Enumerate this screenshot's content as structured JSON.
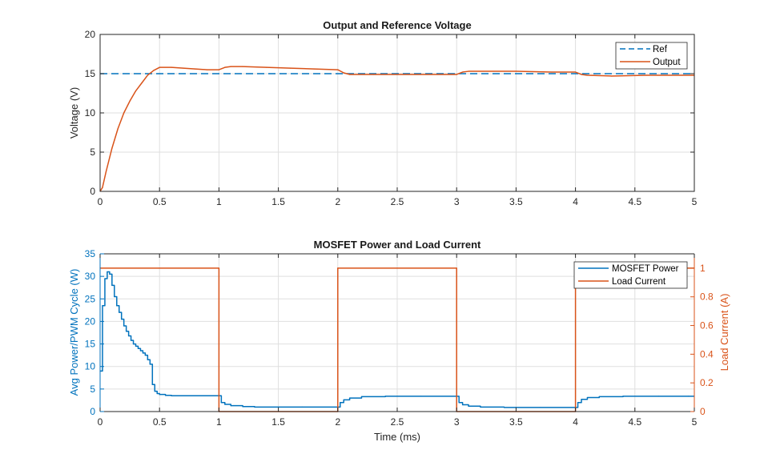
{
  "chart_data": [
    {
      "type": "line",
      "title": "Output and Reference Voltage",
      "xlabel": "",
      "ylabel": "Voltage (V)",
      "xlim": [
        0,
        5
      ],
      "ylim": [
        0,
        20
      ],
      "xticks": [
        0,
        0.5,
        1,
        1.5,
        2,
        2.5,
        3,
        3.5,
        4,
        4.5,
        5
      ],
      "xtick_labels": [
        "0",
        "0.5",
        "1",
        "1.5",
        "2",
        "2.5",
        "3",
        "3.5",
        "4",
        "4.5",
        "5"
      ],
      "yticks": [
        0,
        5,
        10,
        15,
        20
      ],
      "ytick_labels": [
        "0",
        "5",
        "10",
        "15",
        "20"
      ],
      "grid": true,
      "legend": "top-right",
      "series": [
        {
          "name": "Ref",
          "color": "#0072BD",
          "dash": true,
          "x": [
            0,
            5
          ],
          "y": [
            15,
            15
          ]
        },
        {
          "name": "Output",
          "color": "#D95319",
          "dash": false,
          "x": [
            0,
            0.02,
            0.05,
            0.1,
            0.15,
            0.2,
            0.25,
            0.3,
            0.35,
            0.4,
            0.45,
            0.5,
            0.6,
            0.7,
            0.8,
            0.9,
            1.0,
            1.05,
            1.1,
            1.2,
            1.4,
            1.6,
            1.8,
            2.0,
            2.05,
            2.1,
            2.3,
            2.6,
            2.9,
            3.0,
            3.05,
            3.1,
            3.2,
            3.5,
            3.8,
            4.0,
            4.05,
            4.1,
            4.3,
            4.6,
            4.9,
            5.0
          ],
          "y": [
            0,
            0.5,
            2.5,
            5.5,
            8,
            10,
            11.5,
            12.8,
            13.8,
            14.8,
            15.4,
            15.8,
            15.8,
            15.7,
            15.6,
            15.5,
            15.5,
            15.8,
            15.9,
            15.9,
            15.8,
            15.7,
            15.6,
            15.5,
            15.1,
            14.9,
            14.9,
            14.9,
            14.9,
            14.9,
            15.2,
            15.3,
            15.3,
            15.3,
            15.2,
            15.2,
            14.9,
            14.8,
            14.7,
            14.8,
            14.8,
            14.8
          ]
        }
      ]
    },
    {
      "type": "line",
      "title": "MOSFET Power and Load Current",
      "xlabel": "Time (ms)",
      "ylabel": "Avg Power/PWM Cycle (W)",
      "ylabel_right": "Load Current (A)",
      "xlim": [
        0,
        5
      ],
      "ylim": [
        0,
        35
      ],
      "ylim_right": [
        0,
        1.1
      ],
      "xticks": [
        0,
        0.5,
        1,
        1.5,
        2,
        2.5,
        3,
        3.5,
        4,
        4.5,
        5
      ],
      "xtick_labels": [
        "0",
        "0.5",
        "1",
        "1.5",
        "2",
        "2.5",
        "3",
        "3.5",
        "4",
        "4.5",
        "5"
      ],
      "yticks": [
        0,
        5,
        10,
        15,
        20,
        25,
        30,
        35
      ],
      "ytick_labels": [
        "0",
        "5",
        "10",
        "15",
        "20",
        "25",
        "30",
        "35"
      ],
      "yticks_right": [
        0,
        0.2,
        0.4,
        0.6,
        0.8,
        1
      ],
      "ytick_labels_right": [
        "0",
        "0.2",
        "0.4",
        "0.6",
        "0.8",
        "1"
      ],
      "grid": true,
      "legend": "top-right",
      "series": [
        {
          "name": "MOSFET Power",
          "color": "#0072BD",
          "axis": "left",
          "step": true,
          "x": [
            0,
            0.02,
            0.04,
            0.06,
            0.08,
            0.1,
            0.12,
            0.14,
            0.16,
            0.18,
            0.2,
            0.22,
            0.24,
            0.26,
            0.28,
            0.3,
            0.32,
            0.34,
            0.36,
            0.38,
            0.4,
            0.42,
            0.44,
            0.46,
            0.48,
            0.5,
            0.55,
            0.6,
            0.7,
            0.8,
            0.9,
            1.0,
            1.02,
            1.05,
            1.1,
            1.2,
            1.3,
            1.5,
            1.7,
            2.0,
            2.02,
            2.05,
            2.1,
            2.2,
            2.4,
            2.7,
            3.0,
            3.02,
            3.05,
            3.1,
            3.2,
            3.4,
            3.7,
            4.0,
            4.02,
            4.05,
            4.1,
            4.2,
            4.4,
            4.7,
            4.95
          ],
          "y": [
            9,
            23.5,
            29.5,
            31,
            30.5,
            28,
            25.5,
            23.5,
            22,
            20.5,
            19,
            17.8,
            16.8,
            15.8,
            15,
            14.5,
            14,
            13.5,
            13,
            12.5,
            11.5,
            10.5,
            6,
            4.5,
            4,
            3.8,
            3.6,
            3.5,
            3.5,
            3.5,
            3.5,
            3.5,
            2.0,
            1.6,
            1.3,
            1.1,
            1.0,
            1.0,
            1.0,
            1.0,
            2.0,
            2.6,
            3.0,
            3.3,
            3.4,
            3.4,
            3.4,
            2.0,
            1.5,
            1.2,
            1.0,
            0.9,
            0.9,
            0.9,
            2.0,
            2.7,
            3.1,
            3.3,
            3.4,
            3.4,
            3.4
          ]
        },
        {
          "name": "Load Current",
          "color": "#D95319",
          "axis": "right",
          "step": false,
          "x": [
            0,
            1,
            1,
            2,
            2,
            3,
            3,
            4,
            4,
            5
          ],
          "y": [
            1,
            1,
            0,
            0,
            1,
            1,
            0,
            0,
            1,
            1
          ]
        }
      ]
    }
  ]
}
